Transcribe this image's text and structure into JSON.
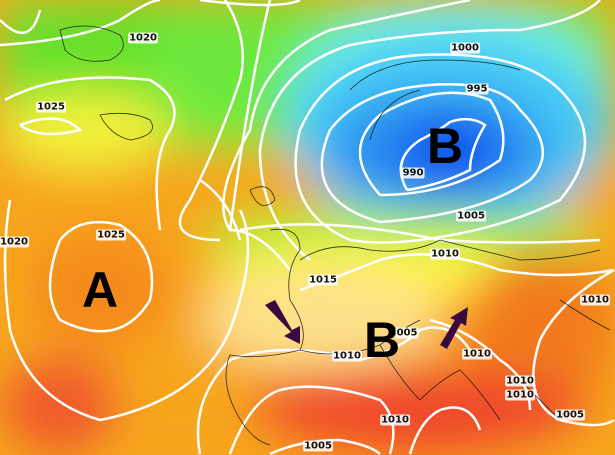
{
  "map": {
    "systems": [
      {
        "letter": "A",
        "meaning": "high pressure"
      },
      {
        "letter": "B",
        "meaning": "low pressure"
      },
      {
        "letter": "B",
        "meaning": "low pressure"
      }
    ],
    "isobar_labels": [
      "1020",
      "1025",
      "1000",
      "995",
      "990",
      "1005",
      "1020",
      "1025",
      "1010",
      "1015",
      "005",
      "1010",
      "1010",
      "1010",
      "1010",
      "1010",
      "1005",
      "1010",
      "1005"
    ],
    "colors": {
      "high": "#f58a1c",
      "low": "#0a4bf0",
      "isobar": "#ffffff",
      "arrow": "#3a0a3f"
    }
  }
}
